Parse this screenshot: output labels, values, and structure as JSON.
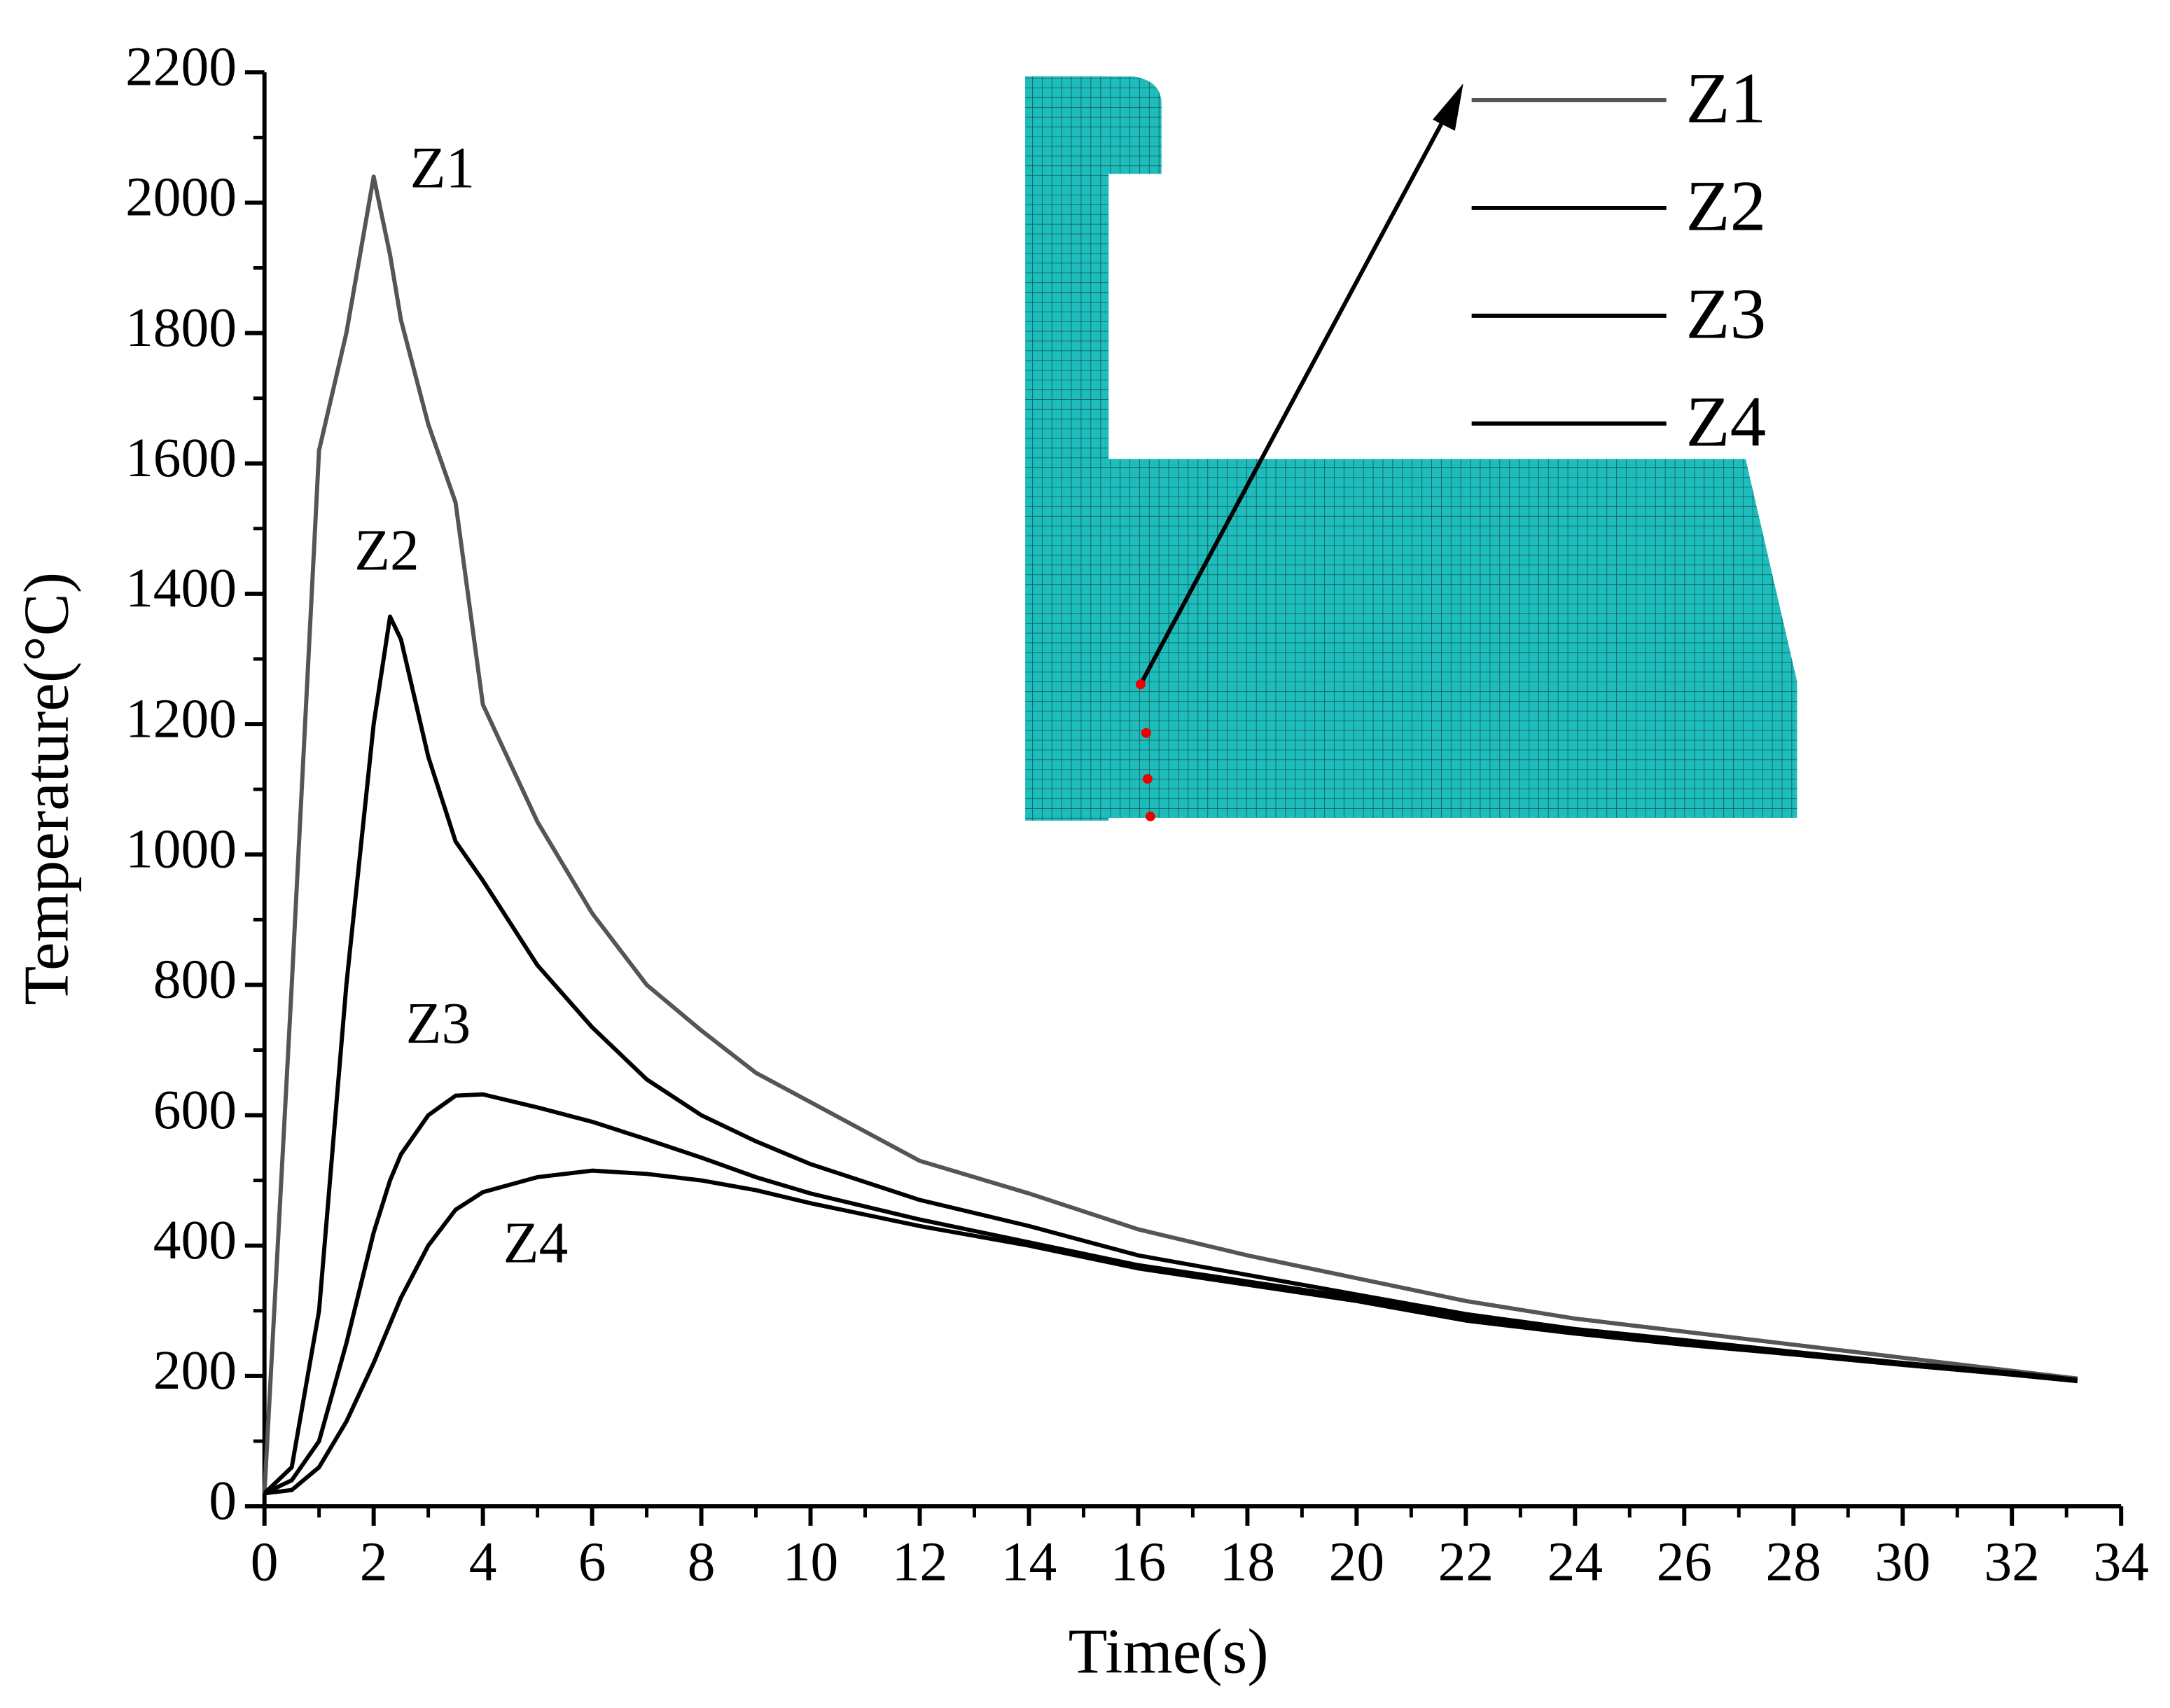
{
  "chart_data": {
    "type": "line",
    "xlabel": "Time(s)",
    "ylabel": "Temperature(°C)",
    "x": [
      0,
      0.5,
      1,
      1.5,
      2,
      2.3,
      2.5,
      3,
      3.5,
      4,
      5,
      6,
      7,
      8,
      9,
      10,
      12,
      14,
      16,
      18,
      20,
      22,
      24,
      26,
      28,
      30,
      32,
      33.2
    ],
    "series": [
      {
        "name": "Z1",
        "color": "#555555",
        "values": [
          20,
          800,
          1620,
          1800,
          2040,
          1920,
          1820,
          1660,
          1540,
          1230,
          1050,
          910,
          800,
          730,
          665,
          620,
          530,
          480,
          425,
          385,
          350,
          315,
          288,
          268,
          248,
          228,
          208,
          196
        ]
      },
      {
        "name": "Z2",
        "color": "#000000",
        "values": [
          20,
          60,
          300,
          800,
          1200,
          1365,
          1330,
          1150,
          1020,
          960,
          830,
          735,
          655,
          600,
          560,
          525,
          470,
          430,
          385,
          355,
          325,
          295,
          272,
          255,
          237,
          220,
          205,
          194
        ]
      },
      {
        "name": "Z3",
        "color": "#000000",
        "values": [
          20,
          40,
          100,
          250,
          420,
          500,
          540,
          600,
          630,
          632,
          612,
          590,
          563,
          535,
          505,
          480,
          440,
          405,
          370,
          345,
          320,
          290,
          268,
          250,
          235,
          218,
          203,
          193
        ]
      },
      {
        "name": "Z4",
        "color": "#000000",
        "values": [
          20,
          25,
          60,
          130,
          220,
          280,
          320,
          400,
          455,
          482,
          505,
          515,
          510,
          500,
          485,
          465,
          430,
          400,
          365,
          340,
          315,
          285,
          265,
          248,
          233,
          217,
          202,
          192
        ]
      }
    ],
    "xlim": [
      0,
      34
    ],
    "xticks": [
      0,
      2,
      4,
      6,
      8,
      10,
      12,
      14,
      16,
      18,
      20,
      22,
      24,
      26,
      28,
      30,
      32,
      34
    ],
    "ylim": [
      0,
      2200
    ],
    "yticks": [
      0,
      200,
      400,
      600,
      800,
      1000,
      1200,
      1400,
      1600,
      1800,
      2000,
      2200
    ],
    "grid": false,
    "legend": "upper right"
  }
}
